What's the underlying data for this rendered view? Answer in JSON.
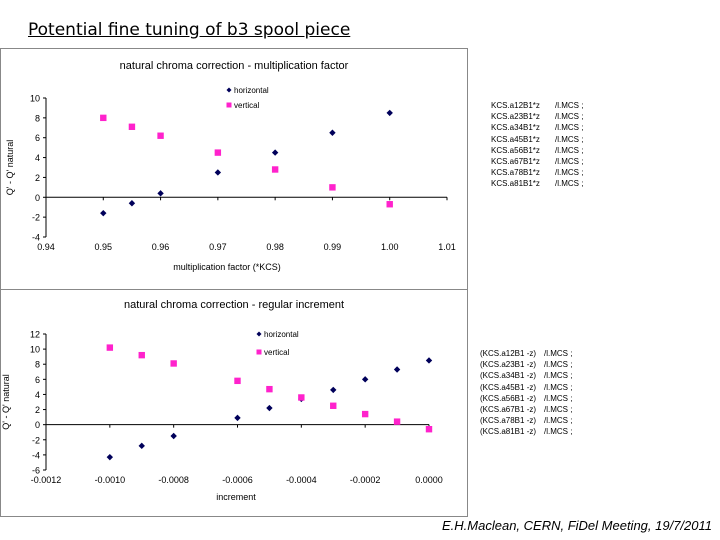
{
  "slide": {
    "title": "Potential fine tuning of b3 spool piece",
    "footer": "E.H.Maclean, CERN, FiDel Meeting, 19/7/2011"
  },
  "colors": {
    "horizontal": "#00005a",
    "vertical": "#ff22cc"
  },
  "chart_data": [
    {
      "type": "scatter",
      "title": "natural chroma correction - multiplication factor",
      "xlabel": "multiplication factor (*KCS)",
      "ylabel": "Q' - Q' natural",
      "xlim": [
        0.94,
        1.01
      ],
      "ylim": [
        -4,
        10
      ],
      "x_ticks": [
        0.94,
        0.95,
        0.96,
        0.97,
        0.98,
        0.99,
        1.0,
        1.01
      ],
      "x_tick_labels": [
        "0.94",
        "0.95",
        "0.96",
        "0.97",
        "0.98",
        "0.99",
        "1.00",
        "1.01"
      ],
      "y_ticks": [
        -4,
        -2,
        0,
        2,
        4,
        6,
        8,
        10
      ],
      "y_tick_labels": [
        "-4",
        "-2",
        "0",
        "2",
        "4",
        "6",
        "8",
        "10"
      ],
      "legend": "top",
      "series": [
        {
          "name": "horizontal",
          "marker": "diamond",
          "points": [
            [
              0.95,
              -1.6
            ],
            [
              0.955,
              -0.6
            ],
            [
              0.96,
              0.4
            ],
            [
              0.97,
              2.5
            ],
            [
              0.98,
              4.5
            ],
            [
              0.99,
              6.5
            ],
            [
              1.0,
              8.5
            ]
          ]
        },
        {
          "name": "vertical",
          "marker": "square",
          "points": [
            [
              0.95,
              8.0
            ],
            [
              0.955,
              7.1
            ],
            [
              0.96,
              6.2
            ],
            [
              0.97,
              4.5
            ],
            [
              0.98,
              2.8
            ],
            [
              0.99,
              1.0
            ],
            [
              1.0,
              -0.7
            ]
          ]
        }
      ]
    },
    {
      "type": "scatter",
      "title": "natural chroma correction - regular increment",
      "xlabel": "increment",
      "ylabel": "Q' - Q' natural",
      "xlim": [
        -0.0012,
        0.0
      ],
      "ylim": [
        -6,
        12
      ],
      "x_ticks": [
        -0.0012,
        -0.001,
        -0.0008,
        -0.0006,
        -0.0004,
        -0.0002,
        0.0
      ],
      "x_tick_labels": [
        "-0.0012",
        "-0.0010",
        "-0.0008",
        "-0.0006",
        "-0.0004",
        "-0.0002",
        "0.0000"
      ],
      "y_ticks": [
        -6,
        -4,
        -2,
        0,
        2,
        4,
        6,
        8,
        10,
        12
      ],
      "y_tick_labels": [
        "-6",
        "-4",
        "-2",
        "0",
        "2",
        "4",
        "6",
        "8",
        "10",
        "12"
      ],
      "legend": "top-right",
      "series": [
        {
          "name": "horizontal",
          "marker": "diamond",
          "points": [
            [
              -0.001,
              -4.3
            ],
            [
              -0.0009,
              -2.8
            ],
            [
              -0.0008,
              -1.5
            ],
            [
              -0.0006,
              0.9
            ],
            [
              -0.0005,
              2.2
            ],
            [
              -0.0004,
              3.4
            ],
            [
              -0.0003,
              4.6
            ],
            [
              -0.0002,
              6.0
            ],
            [
              -0.0001,
              7.3
            ],
            [
              0.0,
              8.5
            ]
          ]
        },
        {
          "name": "vertical",
          "marker": "square",
          "points": [
            [
              -0.001,
              10.2
            ],
            [
              -0.0009,
              9.2
            ],
            [
              -0.0008,
              8.1
            ],
            [
              -0.0006,
              5.8
            ],
            [
              -0.0005,
              4.7
            ],
            [
              -0.0004,
              3.6
            ],
            [
              -0.0003,
              2.5
            ],
            [
              -0.0002,
              1.4
            ],
            [
              -0.0001,
              0.4
            ],
            [
              0.0,
              -0.6
            ]
          ]
        }
      ]
    }
  ],
  "code_top": [
    {
      "expr": "KCS.a12B1*z",
      "suffix": "/l.MCS ;"
    },
    {
      "expr": "KCS.a23B1*z",
      "suffix": "/l.MCS ;"
    },
    {
      "expr": "KCS.a34B1*z",
      "suffix": "/l.MCS ;"
    },
    {
      "expr": "KCS.a45B1*z",
      "suffix": "/l.MCS ;"
    },
    {
      "expr": "KCS.a56B1*z",
      "suffix": "/l.MCS ;"
    },
    {
      "expr": "KCS.a67B1*z",
      "suffix": "/l.MCS ;"
    },
    {
      "expr": "KCS.a78B1*z",
      "suffix": "/l.MCS ;"
    },
    {
      "expr": "KCS.a81B1*z",
      "suffix": "/l.MCS ;"
    }
  ],
  "code_bottom": [
    {
      "expr": "(KCS.a12B1 -z)",
      "suffix": "/l.MCS ;"
    },
    {
      "expr": "(KCS.a23B1 -z)",
      "suffix": "/l.MCS ;"
    },
    {
      "expr": "(KCS.a34B1 -z)",
      "suffix": "/l.MCS ;"
    },
    {
      "expr": "(KCS.a45B1 -z)",
      "suffix": "/l.MCS ;"
    },
    {
      "expr": "(KCS.a56B1 -z)",
      "suffix": "/l.MCS ;"
    },
    {
      "expr": "(KCS.a67B1 -z)",
      "suffix": "/l.MCS ;"
    },
    {
      "expr": "(KCS.a78B1 -z)",
      "suffix": "/l.MCS ;"
    },
    {
      "expr": "(KCS.a81B1 -z)",
      "suffix": "/l.MCS ;"
    }
  ]
}
